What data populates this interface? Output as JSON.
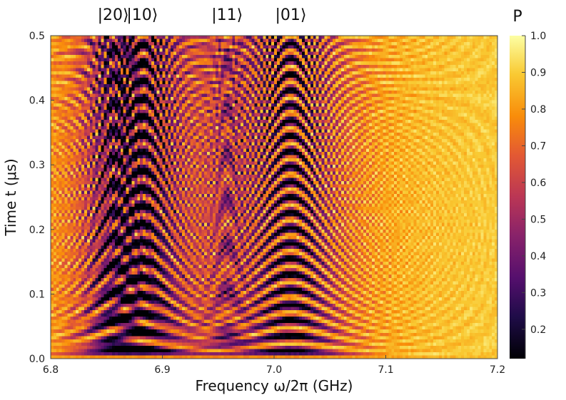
{
  "chart_data": {
    "type": "heatmap",
    "xlabel": "Frequency ω/2π (GHz)",
    "ylabel": "Time t (μs)",
    "xlim": [
      6.8,
      7.2
    ],
    "ylim": [
      0.0,
      0.5
    ],
    "x_ticks": [
      "6.8",
      "6.9",
      "7.0",
      "7.1",
      "7.2"
    ],
    "y_ticks": [
      "0.0",
      "0.1",
      "0.2",
      "0.3",
      "0.4",
      "0.5"
    ],
    "x_tick_values": [
      6.8,
      6.9,
      7.0,
      7.1,
      7.2
    ],
    "y_tick_values": [
      0.0,
      0.1,
      0.2,
      0.3,
      0.4,
      0.5
    ],
    "colorbar": {
      "title": "P",
      "colormap": "inferno",
      "range": [
        0.12,
        1.0
      ],
      "ticks": [
        "0.2",
        "0.3",
        "0.4",
        "0.5",
        "0.6",
        "0.7",
        "0.8",
        "0.9",
        "1.0"
      ],
      "tick_values": [
        0.2,
        0.3,
        0.4,
        0.5,
        0.6,
        0.7,
        0.8,
        0.9,
        1.0
      ]
    },
    "state_labels": [
      {
        "text": "|20⟩",
        "frequency": 6.856
      },
      {
        "text": "|10⟩",
        "frequency": 6.882
      },
      {
        "text": "|11⟩",
        "frequency": 6.958
      },
      {
        "text": "|01⟩",
        "frequency": 7.015
      }
    ],
    "resonances": [
      {
        "frequency": 7.015,
        "rabi_rate": 42,
        "depth": 0.88
      },
      {
        "frequency": 6.882,
        "rabi_rate": 36,
        "depth": 0.82
      },
      {
        "frequency": 6.857,
        "rabi_rate": 24,
        "depth": 0.62
      },
      {
        "frequency": 6.958,
        "rabi_rate": 14,
        "depth": 0.32
      }
    ],
    "baseline_P": 0.93,
    "grid": false
  }
}
